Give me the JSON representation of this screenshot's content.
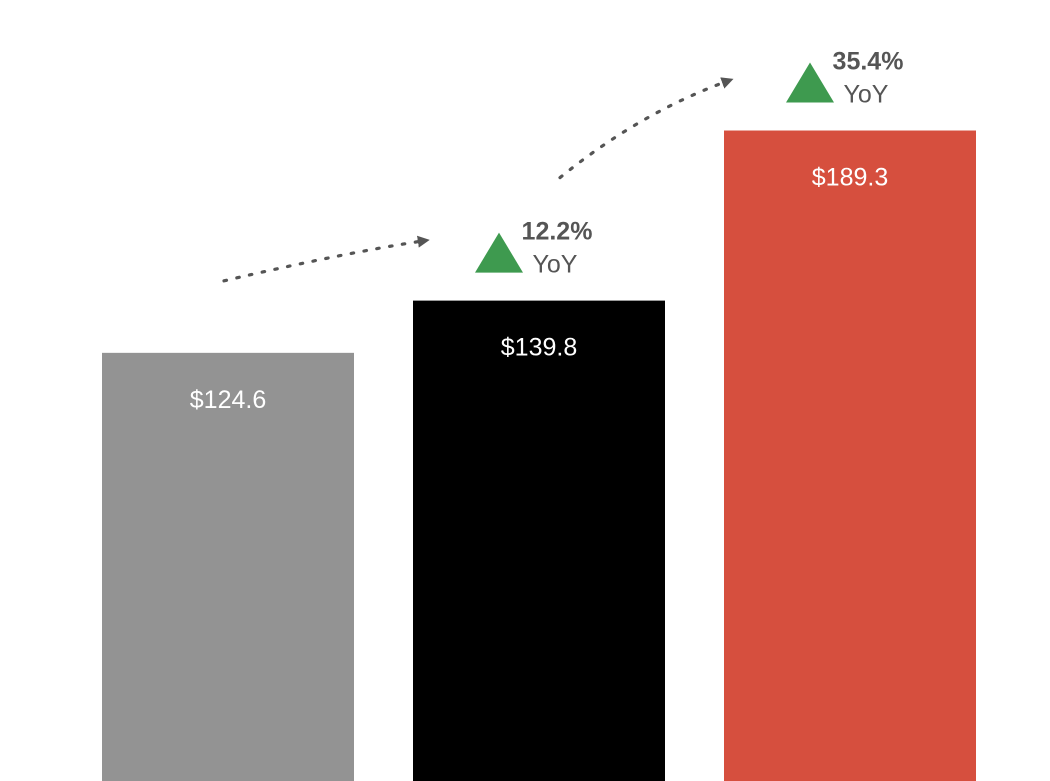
{
  "chart_data": {
    "type": "bar",
    "categories": [
      "",
      "",
      ""
    ],
    "values": [
      124.6,
      139.8,
      189.3
    ],
    "value_labels": [
      "$124.6",
      "$139.8",
      "$189.3"
    ],
    "colors": [
      "#939393",
      "#000000",
      "#d64f3e"
    ],
    "label_color": "#ffffff",
    "title": "",
    "xlabel": "",
    "ylabel": "",
    "ylim": [
      0,
      204
    ],
    "grid": false,
    "axes_visible": false,
    "legend": "none",
    "growth_annotations": [
      {
        "value": "12.2%",
        "unit": "YoY",
        "between": [
          0,
          1
        ],
        "direction": "up",
        "indicator_icon": "up-triangle-icon"
      },
      {
        "value": "35.4%",
        "unit": "YoY",
        "between": [
          1,
          2
        ],
        "direction": "up",
        "indicator_icon": "up-triangle-icon"
      }
    ],
    "growth_color": "#3e9a4f",
    "annotation_text_color": "#555555",
    "trend_arrow_color": "#555555"
  }
}
